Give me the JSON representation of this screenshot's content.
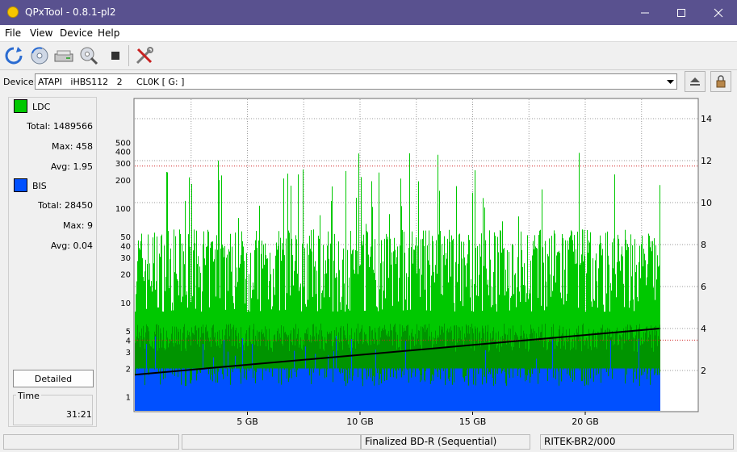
{
  "window": {
    "title": "QPxTool - 0.8.1-pl2"
  },
  "menu": [
    "File",
    "View",
    "Device",
    "Help"
  ],
  "toolbar": {
    "icons": [
      "refresh-icon",
      "disc-scan-icon",
      "drive-icon",
      "magnify-disc-icon",
      "stop-icon",
      "settings-tools-icon"
    ]
  },
  "device": {
    "label": "Device:",
    "value": "ATAPI   iHBS112   2     CL0K [ G: ]"
  },
  "legend": {
    "ldc": {
      "label": "LDC",
      "color": "#00c800",
      "total_label": "Total:",
      "total": "1489566",
      "max_label": "Max:",
      "max": "458",
      "avg_label": "Avg:",
      "avg": "1.95"
    },
    "bis": {
      "label": "BIS",
      "color": "#0050ff",
      "total_label": "Total:",
      "total": "28450",
      "max_label": "Max:",
      "max": "9",
      "avg_label": "Avg:",
      "avg": "0.04"
    }
  },
  "buttons": {
    "detailed": "Detailed"
  },
  "time": {
    "label": "Time",
    "value": "31:21"
  },
  "status": {
    "pane3": "Finalized BD-R (Sequential)",
    "pane4": "RITEK-BR2/000"
  },
  "chart_data": {
    "type": "bar",
    "x_label_unit": "GB",
    "x_ticks": [
      "5 GB",
      "10 GB",
      "15 GB",
      "20 GB"
    ],
    "x_tick_values": [
      5,
      10,
      15,
      20
    ],
    "xlim": [
      0,
      25
    ],
    "y_left_scale": "log",
    "y_left_ticks": [
      "1",
      "2",
      "3",
      "4",
      "5",
      "10",
      "20",
      "30",
      "40",
      "50",
      "100",
      "200",
      "300",
      "400",
      "500"
    ],
    "y_left_tick_values": [
      1,
      2,
      3,
      4,
      5,
      10,
      20,
      30,
      40,
      50,
      100,
      200,
      300,
      400,
      500
    ],
    "y_right_ticks": [
      "2",
      "4",
      "6",
      "8",
      "10",
      "12",
      "14"
    ],
    "y_right_tick_values": [
      2,
      4,
      6,
      8,
      10,
      12,
      14
    ],
    "threshold_ldc": 280,
    "threshold_bis": 4,
    "data_end_gb": 23.3,
    "series": [
      {
        "name": "LDC",
        "color": "#00c800",
        "typical_range": [
          8,
          60
        ],
        "max": 458
      },
      {
        "name": "BIS",
        "color": "#0050ff",
        "typical_range": [
          1,
          2
        ],
        "max": 9
      },
      {
        "color": "#000000",
        "type": "line",
        "x": [
          0,
          23.3
        ],
        "y": [
          1.8,
          4.0
        ]
      }
    ]
  }
}
